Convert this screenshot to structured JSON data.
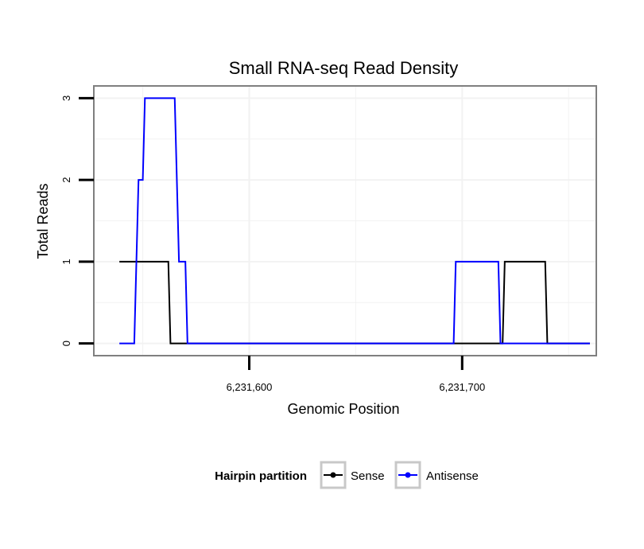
{
  "chart_data": {
    "type": "line",
    "title": "Small RNA-seq Read Density",
    "xlabel": "Genomic Position",
    "ylabel": "Total Reads",
    "xlim": [
      6231527,
      6231763
    ],
    "ylim": [
      -0.15,
      3.15
    ],
    "x_ticks": [
      6231600,
      6231700
    ],
    "x_tick_labels": [
      "6,231,600",
      "6,231,700"
    ],
    "y_ticks": [
      0,
      1,
      2,
      3
    ],
    "y_tick_labels": [
      "0",
      "1",
      "2",
      "3"
    ],
    "grid": true,
    "colors": {
      "Sense": "#000000",
      "Antisense": "#0000ff",
      "grid": "#f2f2f2",
      "panel_border": "#7f7f7f"
    },
    "series": [
      {
        "name": "Sense",
        "points": [
          [
            6231539,
            1
          ],
          [
            6231562,
            1
          ],
          [
            6231563,
            0
          ],
          [
            6231719,
            0
          ],
          [
            6231720,
            1
          ],
          [
            6231739,
            1
          ],
          [
            6231740,
            0
          ],
          [
            6231760,
            0
          ]
        ]
      },
      {
        "name": "Antisense",
        "points": [
          [
            6231539,
            0
          ],
          [
            6231546,
            0
          ],
          [
            6231548,
            2
          ],
          [
            6231550,
            2
          ],
          [
            6231551,
            3
          ],
          [
            6231565,
            3
          ],
          [
            6231567,
            1
          ],
          [
            6231570,
            1
          ],
          [
            6231571,
            0
          ],
          [
            6231696,
            0
          ],
          [
            6231697,
            1
          ],
          [
            6231717,
            1
          ],
          [
            6231718,
            0
          ],
          [
            6231760,
            0
          ]
        ]
      }
    ],
    "legend": {
      "title": "Hairpin partition",
      "entries": [
        "Sense",
        "Antisense"
      ],
      "position": "bottom"
    }
  }
}
